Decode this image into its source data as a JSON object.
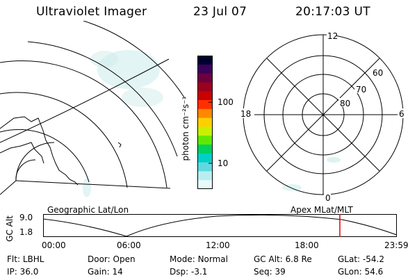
{
  "header": {
    "instrument": "Ultraviolet Imager",
    "date": "23 Jul 07",
    "time": "20:17:03 UT"
  },
  "geo_panel": {
    "label": "Geographic Lat/Lon"
  },
  "apex_panel": {
    "label": "Apex MLat/MLT"
  },
  "colorbar": {
    "unit": "photon cm⁻²s⁻¹",
    "ticks": [
      "100",
      "10"
    ],
    "colors": [
      "#000030",
      "#3a005a",
      "#6a0040",
      "#9a0020",
      "#c80000",
      "#ff3000",
      "#ff8800",
      "#ffd000",
      "#c8f000",
      "#60e800",
      "#00d060",
      "#00d0c8",
      "#60d8e0",
      "#b8eef0",
      "#e8fafa"
    ]
  },
  "polar": {
    "mlt_labels": [
      "12",
      "18",
      "6",
      "0"
    ],
    "lat_labels": [
      "60",
      "70",
      "80"
    ]
  },
  "altitude_strip": {
    "axis_label": "GC Alt",
    "y_ticks": [
      "9.0",
      "1.8"
    ],
    "x_ticks": [
      "00:00",
      "06:00",
      "12:00",
      "18:00",
      "23:59"
    ],
    "marker_color": "#e00000"
  },
  "status": {
    "flt": {
      "label": "Flt:",
      "value": "LBHL"
    },
    "ip": {
      "label": "IP:",
      "value": "36.0"
    },
    "door": {
      "label": "Door:",
      "value": "Open"
    },
    "gain": {
      "label": "Gain:",
      "value": "14"
    },
    "mode": {
      "label": "Mode:",
      "value": "Normal"
    },
    "dsp": {
      "label": "Dsp:",
      "value": "-3.1"
    },
    "gcalt": {
      "label": "GC Alt:",
      "value": "6.8 Re"
    },
    "seq": {
      "label": "Seq:",
      "value": "39"
    },
    "glat": {
      "label": "GLat:",
      "value": "-54.2"
    },
    "glon": {
      "label": "GLon:",
      "value": "54.6"
    }
  }
}
